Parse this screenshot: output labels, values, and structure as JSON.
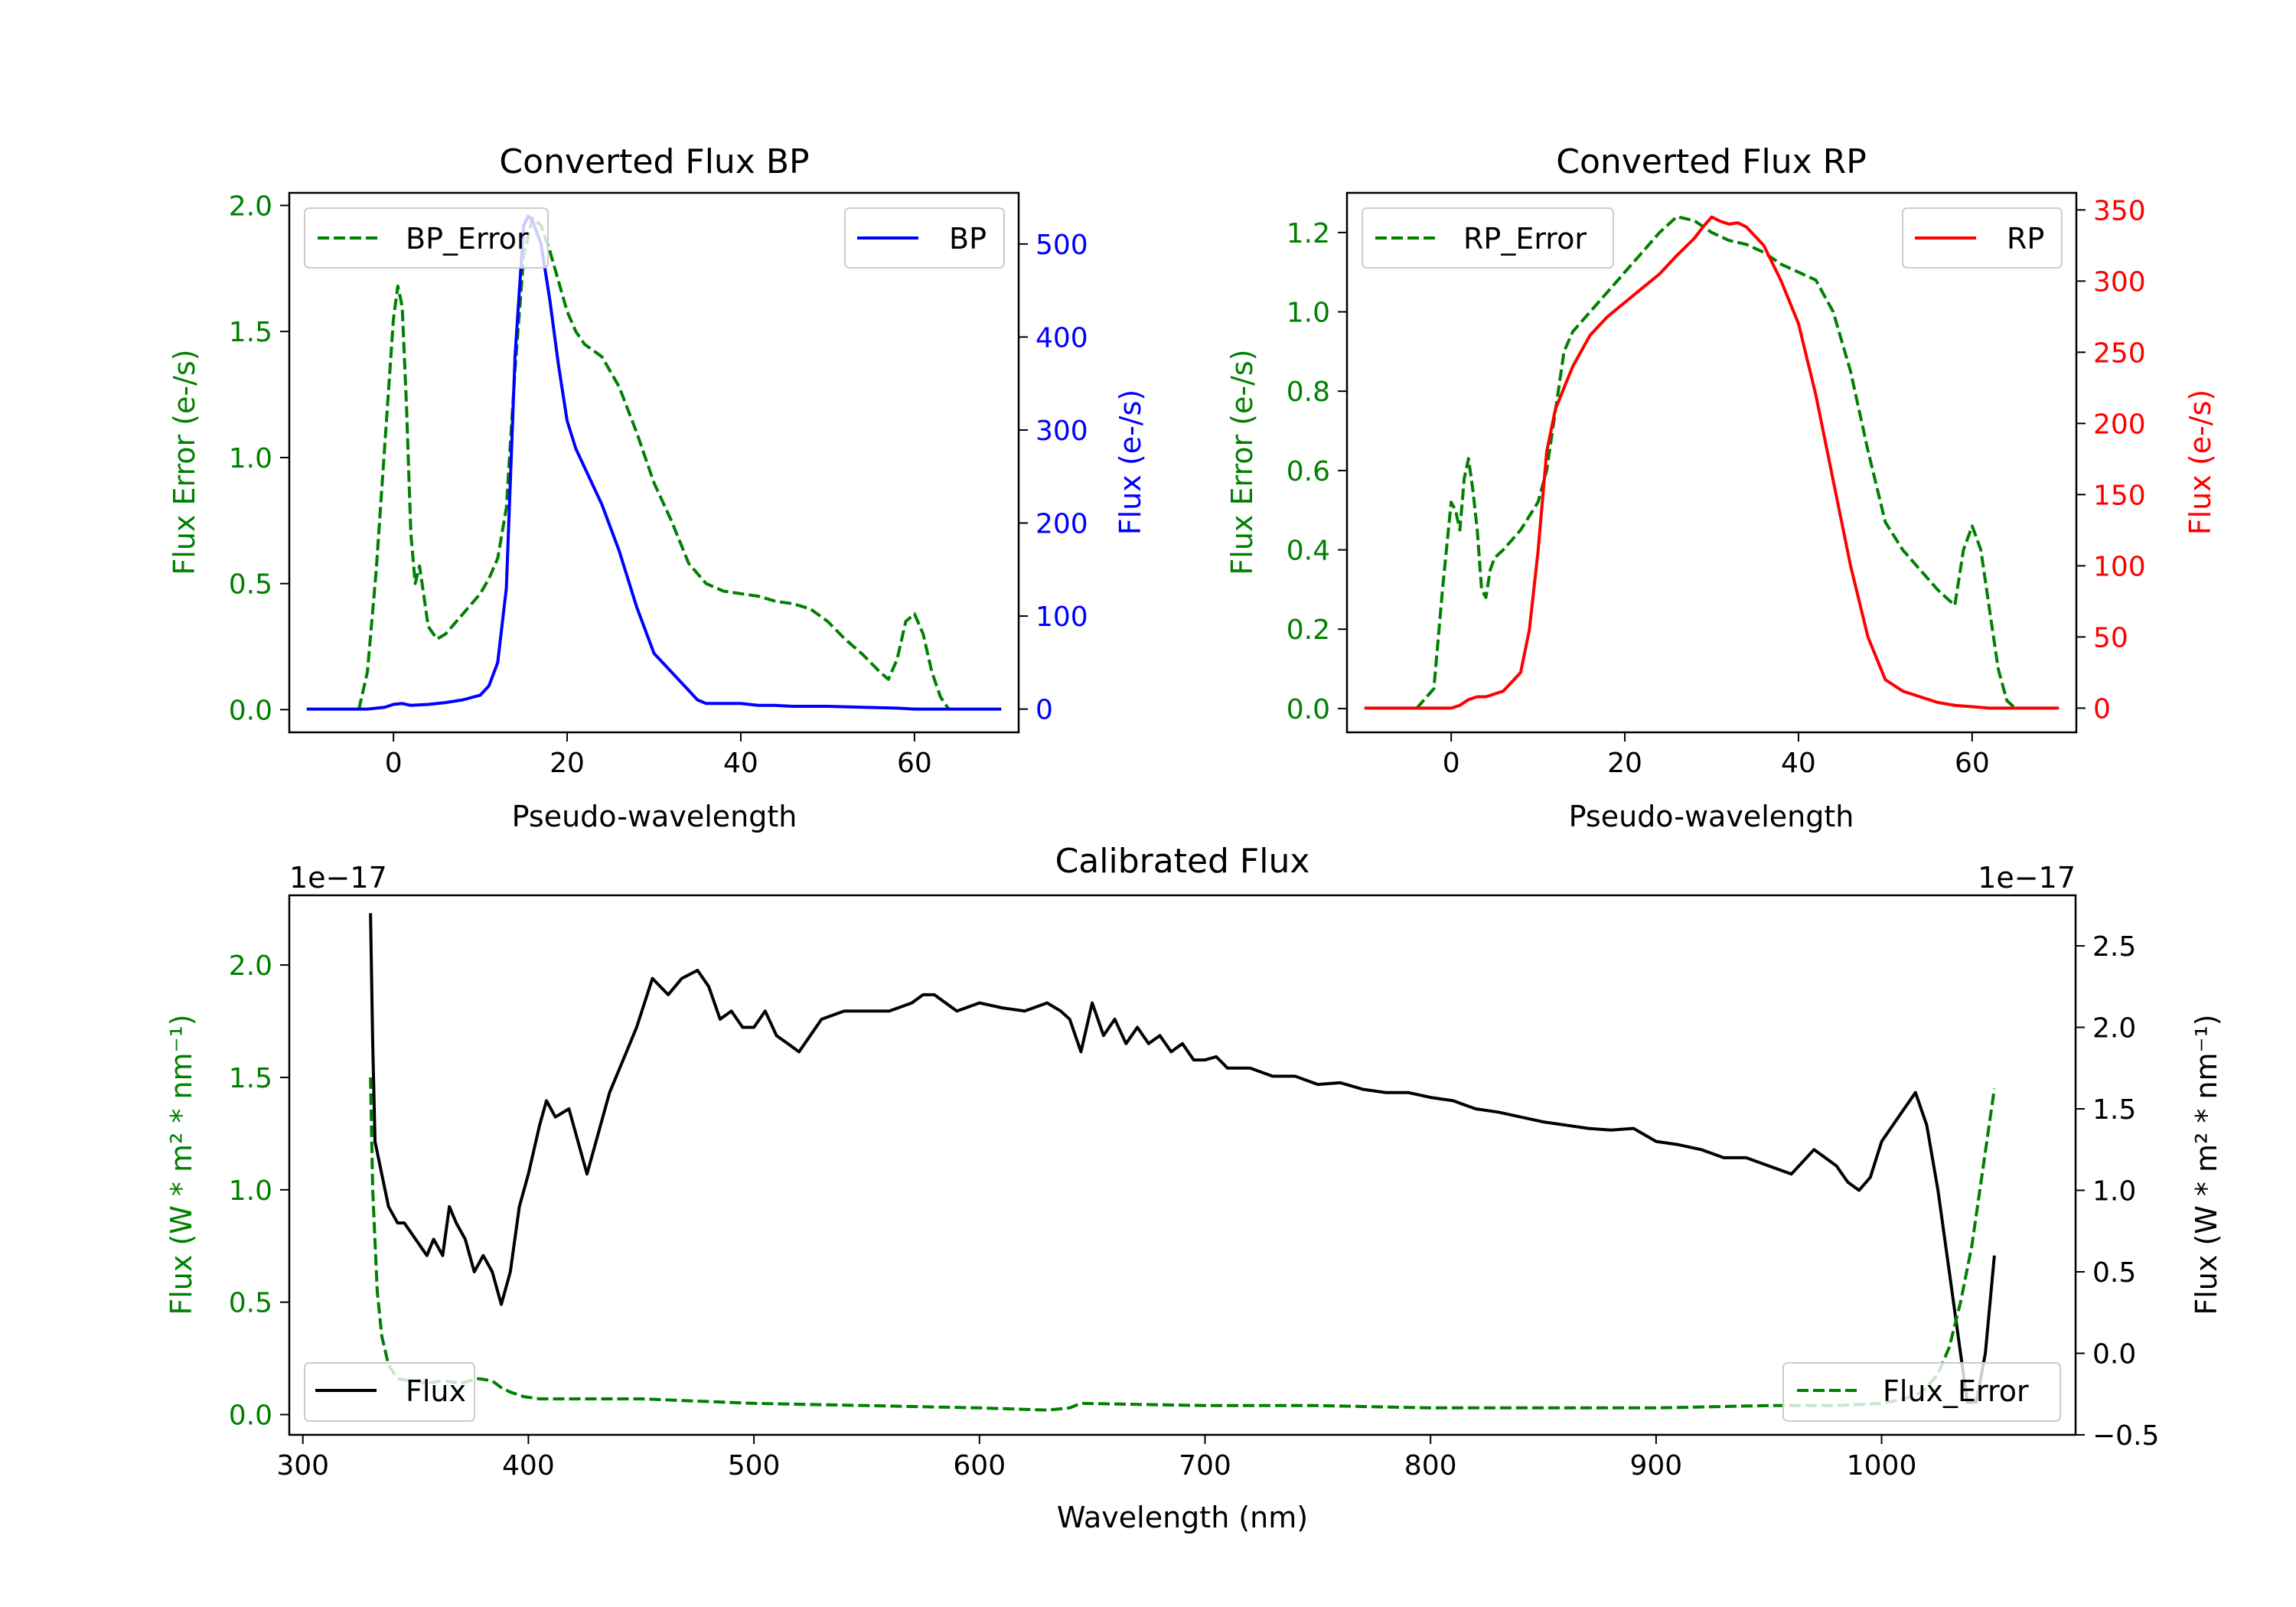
{
  "chart_data": [
    {
      "id": "bp",
      "type": "line",
      "title": "Converted Flux BP",
      "xlabel": "Pseudo-wavelength",
      "ylabel_left": "Flux Error (e-/s)",
      "ylabel_right": "Flux (e-/s)",
      "xlim": [
        -12,
        72
      ],
      "ylim_left": [
        -0.09,
        2.05
      ],
      "ylim_right": [
        -25,
        555
      ],
      "xticks": [
        "0",
        "20",
        "40",
        "60"
      ],
      "yticks_left": [
        "0.0",
        "0.5",
        "1.0",
        "1.5",
        "2.0"
      ],
      "yticks_right": [
        "0",
        "100",
        "200",
        "300",
        "400",
        "500"
      ],
      "series": [
        {
          "name": "BP_Error",
          "axis": "left",
          "color": "#008000",
          "dash": true,
          "x": [
            -4,
            -3,
            -2,
            -1,
            0,
            0.5,
            1,
            1.5,
            2,
            2.5,
            3,
            3.5,
            4,
            5,
            6,
            8,
            10,
            11,
            12,
            13,
            14,
            15,
            16,
            17,
            18,
            19,
            20,
            21,
            22,
            24,
            26,
            28,
            30,
            32,
            34,
            36,
            38,
            40,
            42,
            44,
            46,
            48,
            50,
            52,
            54,
            56,
            57,
            58,
            59,
            60,
            61,
            62,
            63,
            64
          ],
          "y": [
            0.0,
            0.15,
            0.55,
            1.05,
            1.55,
            1.68,
            1.6,
            1.2,
            0.7,
            0.5,
            0.57,
            0.45,
            0.33,
            0.28,
            0.3,
            0.38,
            0.46,
            0.52,
            0.6,
            0.8,
            1.35,
            1.8,
            1.95,
            1.92,
            1.82,
            1.7,
            1.58,
            1.5,
            1.45,
            1.4,
            1.28,
            1.1,
            0.9,
            0.75,
            0.58,
            0.5,
            0.47,
            0.46,
            0.45,
            0.43,
            0.42,
            0.4,
            0.35,
            0.28,
            0.22,
            0.15,
            0.12,
            0.2,
            0.35,
            0.38,
            0.3,
            0.15,
            0.05,
            0.0
          ]
        },
        {
          "name": "BP",
          "axis": "right",
          "color": "#0000ff",
          "dash": false,
          "x": [
            -10,
            -6,
            -3,
            -1,
            0,
            1,
            2,
            4,
            6,
            8,
            10,
            11,
            12,
            13,
            14,
            15,
            15.5,
            16,
            17,
            18,
            19,
            20,
            21,
            22,
            24,
            26,
            28,
            30,
            32,
            34,
            35,
            36,
            38,
            40,
            42,
            44,
            46,
            50,
            54,
            58,
            60,
            64,
            70
          ],
          "y": [
            0,
            0,
            0,
            2,
            5,
            6,
            4,
            5,
            7,
            10,
            15,
            25,
            50,
            130,
            380,
            520,
            530,
            525,
            500,
            440,
            370,
            310,
            280,
            260,
            220,
            170,
            110,
            60,
            40,
            20,
            10,
            6,
            6,
            6,
            4,
            4,
            3,
            3,
            2,
            1,
            0,
            0,
            0
          ]
        }
      ],
      "legend": [
        {
          "label": "BP_Error",
          "position": "upper-left"
        },
        {
          "label": "BP",
          "position": "upper-right"
        }
      ]
    },
    {
      "id": "rp",
      "type": "line",
      "title": "Converted Flux RP",
      "xlabel": "Pseudo-wavelength",
      "ylabel_left": "Flux Error (e-/s)",
      "ylabel_right": "Flux (e-/s)",
      "xlim": [
        -12,
        72
      ],
      "ylim_left": [
        -0.06,
        1.3
      ],
      "ylim_right": [
        -17,
        362
      ],
      "xticks": [
        "0",
        "20",
        "40",
        "60"
      ],
      "yticks_left": [
        "0.0",
        "0.2",
        "0.4",
        "0.6",
        "0.8",
        "1.0",
        "1.2"
      ],
      "yticks_right": [
        "0",
        "50",
        "100",
        "150",
        "200",
        "250",
        "300",
        "350"
      ],
      "series": [
        {
          "name": "RP_Error",
          "axis": "left",
          "color": "#008000",
          "dash": true,
          "x": [
            -4,
            -2,
            -1,
            0,
            0.5,
            1,
            1.5,
            2,
            2.5,
            3,
            3.5,
            4,
            4.5,
            5,
            6,
            8,
            10,
            11,
            12,
            13,
            14,
            16,
            18,
            20,
            22,
            24,
            26,
            28,
            30,
            32,
            34,
            36,
            38,
            40,
            42,
            44,
            46,
            48,
            50,
            52,
            54,
            56,
            57,
            58,
            59,
            60,
            61,
            62,
            63,
            64,
            65
          ],
          "y": [
            0.0,
            0.05,
            0.3,
            0.52,
            0.5,
            0.45,
            0.58,
            0.63,
            0.55,
            0.45,
            0.3,
            0.28,
            0.35,
            0.38,
            0.4,
            0.45,
            0.52,
            0.6,
            0.75,
            0.9,
            0.95,
            1.0,
            1.05,
            1.1,
            1.15,
            1.2,
            1.24,
            1.23,
            1.2,
            1.18,
            1.17,
            1.15,
            1.12,
            1.1,
            1.08,
            1.0,
            0.85,
            0.65,
            0.47,
            0.4,
            0.35,
            0.3,
            0.28,
            0.26,
            0.4,
            0.46,
            0.4,
            0.25,
            0.1,
            0.02,
            0.0
          ]
        },
        {
          "name": "RP",
          "axis": "right",
          "color": "#ff0000",
          "dash": false,
          "x": [
            -10,
            -4,
            -2,
            0,
            1,
            2,
            3,
            4,
            6,
            8,
            9,
            10,
            11,
            12,
            13,
            14,
            16,
            18,
            20,
            22,
            24,
            26,
            28,
            29,
            30,
            31,
            32,
            33,
            34,
            36,
            38,
            40,
            42,
            44,
            46,
            48,
            50,
            52,
            54,
            56,
            58,
            60,
            62,
            65,
            70
          ],
          "y": [
            0,
            0,
            0,
            0,
            2,
            6,
            8,
            8,
            12,
            25,
            55,
            110,
            180,
            210,
            225,
            240,
            262,
            275,
            285,
            295,
            305,
            318,
            330,
            338,
            345,
            342,
            340,
            341,
            338,
            325,
            300,
            270,
            220,
            160,
            100,
            50,
            20,
            12,
            8,
            4,
            2,
            1,
            0,
            0,
            0
          ]
        }
      ],
      "legend": [
        {
          "label": "RP_Error",
          "position": "upper-left"
        },
        {
          "label": "RP",
          "position": "upper-right"
        }
      ]
    },
    {
      "id": "cal",
      "type": "line",
      "title": "Calibrated Flux",
      "xlabel": "Wavelength (nm)",
      "ylabel_left": "Flux (W * m² * nm⁻¹)",
      "ylabel_right": "Flux (W * m² * nm⁻¹)",
      "offset_left": "1e−17",
      "offset_right": "1e−17",
      "xlim": [
        294,
        1086
      ],
      "ylim_left": [
        -0.09,
        2.31
      ],
      "ylim_right": [
        -0.5,
        2.81
      ],
      "xticks": [
        "300",
        "400",
        "500",
        "600",
        "700",
        "800",
        "900",
        "1000"
      ],
      "yticks_left": [
        "0.0",
        "0.5",
        "1.0",
        "1.5",
        "2.0"
      ],
      "yticks_right": [
        "−0.5",
        "0.0",
        "0.5",
        "1.0",
        "1.5",
        "2.0",
        "2.5"
      ],
      "series": [
        {
          "name": "Flux",
          "axis": "right",
          "color": "#000000",
          "dash": false,
          "x": [
            330,
            331,
            332,
            335,
            338,
            342,
            345,
            350,
            355,
            358,
            362,
            365,
            368,
            372,
            376,
            380,
            384,
            388,
            392,
            396,
            400,
            405,
            408,
            412,
            418,
            422,
            426,
            430,
            436,
            442,
            448,
            455,
            462,
            468,
            475,
            480,
            485,
            490,
            495,
            500,
            505,
            510,
            515,
            520,
            525,
            530,
            540,
            550,
            560,
            570,
            575,
            580,
            585,
            590,
            600,
            610,
            620,
            630,
            636,
            640,
            645,
            650,
            655,
            660,
            665,
            670,
            675,
            680,
            685,
            690,
            695,
            700,
            705,
            710,
            720,
            730,
            740,
            750,
            760,
            770,
            780,
            790,
            800,
            810,
            820,
            830,
            840,
            850,
            860,
            870,
            880,
            890,
            900,
            910,
            920,
            930,
            940,
            950,
            960,
            970,
            975,
            980,
            985,
            990,
            995,
            1000,
            1005,
            1010,
            1015,
            1020,
            1025,
            1030,
            1035,
            1038,
            1042,
            1046,
            1050
          ],
          "y": [
            2.7,
            1.9,
            1.3,
            1.1,
            0.9,
            0.8,
            0.8,
            0.7,
            0.6,
            0.7,
            0.6,
            0.9,
            0.8,
            0.7,
            0.5,
            0.6,
            0.5,
            0.3,
            0.5,
            0.9,
            1.1,
            1.4,
            1.55,
            1.45,
            1.5,
            1.3,
            1.1,
            1.3,
            1.6,
            1.8,
            2.0,
            2.3,
            2.2,
            2.3,
            2.35,
            2.25,
            2.05,
            2.1,
            2.0,
            2.0,
            2.1,
            1.95,
            1.9,
            1.85,
            1.95,
            2.05,
            2.1,
            2.1,
            2.1,
            2.15,
            2.2,
            2.2,
            2.15,
            2.1,
            2.15,
            2.12,
            2.1,
            2.15,
            2.1,
            2.05,
            1.85,
            2.15,
            1.95,
            2.05,
            1.9,
            2.0,
            1.9,
            1.95,
            1.85,
            1.9,
            1.8,
            1.8,
            1.82,
            1.75,
            1.75,
            1.7,
            1.7,
            1.65,
            1.66,
            1.62,
            1.6,
            1.6,
            1.57,
            1.55,
            1.5,
            1.48,
            1.45,
            1.42,
            1.4,
            1.38,
            1.37,
            1.38,
            1.3,
            1.28,
            1.25,
            1.2,
            1.2,
            1.15,
            1.1,
            1.25,
            1.2,
            1.15,
            1.05,
            1.0,
            1.08,
            1.3,
            1.4,
            1.5,
            1.6,
            1.4,
            1.0,
            0.5,
            0.0,
            -0.3,
            -0.3,
            0.0,
            0.6
          ]
        },
        {
          "name": "Flux_Error",
          "axis": "left",
          "color": "#008000",
          "dash": true,
          "x": [
            330,
            331,
            333,
            335,
            338,
            342,
            348,
            355,
            362,
            370,
            378,
            384,
            388,
            392,
            398,
            405,
            420,
            450,
            500,
            550,
            600,
            630,
            640,
            645,
            700,
            750,
            800,
            850,
            900,
            950,
            980,
            1000,
            1010,
            1018,
            1025,
            1030,
            1035,
            1040,
            1045,
            1050
          ],
          "y": [
            1.5,
            1.0,
            0.55,
            0.35,
            0.22,
            0.16,
            0.15,
            0.14,
            0.15,
            0.14,
            0.16,
            0.15,
            0.12,
            0.1,
            0.08,
            0.07,
            0.07,
            0.07,
            0.05,
            0.04,
            0.03,
            0.02,
            0.03,
            0.05,
            0.04,
            0.04,
            0.03,
            0.03,
            0.03,
            0.04,
            0.04,
            0.05,
            0.07,
            0.1,
            0.18,
            0.3,
            0.5,
            0.75,
            1.1,
            1.45
          ]
        }
      ],
      "legend": [
        {
          "label": "Flux",
          "position": "lower-left"
        },
        {
          "label": "Flux_Error",
          "position": "lower-right"
        }
      ]
    }
  ]
}
